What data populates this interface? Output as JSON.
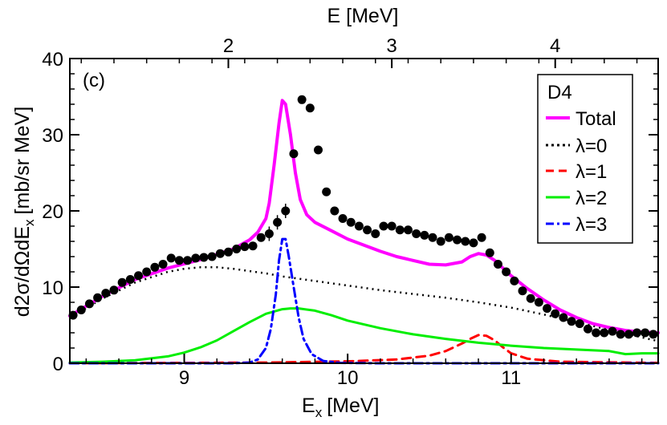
{
  "chart_data": {
    "type": "line",
    "panel_label": "(c)",
    "xlabel": "E",
    "xlabel_sub": "x",
    "xlabel_units": "[MeV]",
    "top_xlabel": "E [MeV]",
    "ylabel": "d2σ/dΩdE",
    "ylabel_sub": "x",
    "ylabel_units": "[mb/sr MeV]",
    "xlim": [
      8.3,
      11.9
    ],
    "ylim": [
      0,
      40
    ],
    "x_ticks": [
      9,
      10,
      11
    ],
    "x_tick_labels": [
      "9",
      "10",
      "11"
    ],
    "y_ticks": [
      0,
      10,
      20,
      30,
      40
    ],
    "y_tick_labels": [
      "0",
      "10",
      "20",
      "30",
      "40"
    ],
    "top_ticks_ex": [
      9.27,
      10.27,
      11.27
    ],
    "top_tick_labels": [
      "2",
      "3",
      "4"
    ],
    "legend": {
      "title": "D4",
      "entries": [
        {
          "label": "Total",
          "color": "#ff00ff",
          "style": "solid"
        },
        {
          "label": "λ=0",
          "color": "#000000",
          "style": "dotted"
        },
        {
          "label": "λ=1",
          "color": "#ff0000",
          "style": "dashed"
        },
        {
          "label": "λ=2",
          "color": "#00ee00",
          "style": "solid"
        },
        {
          "label": "λ=3",
          "color": "#0000ff",
          "style": "dashdot"
        }
      ]
    },
    "data_points": {
      "x": [
        8.32,
        8.37,
        8.42,
        8.47,
        8.52,
        8.57,
        8.62,
        8.67,
        8.72,
        8.77,
        8.82,
        8.87,
        8.92,
        8.97,
        9.02,
        9.07,
        9.12,
        9.17,
        9.22,
        9.27,
        9.32,
        9.37,
        9.42,
        9.47,
        9.52,
        9.57,
        9.62,
        9.67,
        9.72,
        9.77,
        9.82,
        9.87,
        9.92,
        9.97,
        10.02,
        10.07,
        10.12,
        10.17,
        10.22,
        10.27,
        10.32,
        10.37,
        10.42,
        10.47,
        10.52,
        10.57,
        10.62,
        10.67,
        10.72,
        10.77,
        10.82,
        10.87,
        10.92,
        10.97,
        11.02,
        11.07,
        11.12,
        11.17,
        11.22,
        11.27,
        11.32,
        11.37,
        11.42,
        11.47,
        11.52,
        11.57,
        11.62,
        11.67,
        11.72,
        11.77,
        11.82,
        11.87
      ],
      "y": [
        6.3,
        7.0,
        7.8,
        8.6,
        9.2,
        9.6,
        10.6,
        11.0,
        11.5,
        12.0,
        12.6,
        13.0,
        13.8,
        13.5,
        13.5,
        13.8,
        13.9,
        14.0,
        14.4,
        14.6,
        15.0,
        15.3,
        15.4,
        16.5,
        17.0,
        18.5,
        20.0,
        27.5,
        34.6,
        33.5,
        28.0,
        22.5,
        20.0,
        19.0,
        18.5,
        18.0,
        17.5,
        17.0,
        18.0,
        18.0,
        17.5,
        17.5,
        17.0,
        16.8,
        16.5,
        16.0,
        16.5,
        16.2,
        16.0,
        15.8,
        16.5,
        14.5,
        13.0,
        12.0,
        10.8,
        9.5,
        8.5,
        8.0,
        7.2,
        6.5,
        6.0,
        5.5,
        5.2,
        4.5,
        4.0,
        4.0,
        4.2,
        3.8,
        3.8,
        4.0,
        4.0,
        3.8
      ],
      "error_points_ex": [
        9.52,
        9.57,
        9.62
      ]
    },
    "series": [
      {
        "name": "Total",
        "color": "#ff00ff",
        "style": "solid",
        "x": [
          8.3,
          8.5,
          8.7,
          8.9,
          9.1,
          9.3,
          9.4,
          9.45,
          9.5,
          9.52,
          9.55,
          9.58,
          9.6,
          9.62,
          9.65,
          9.68,
          9.71,
          9.75,
          9.8,
          9.9,
          10.0,
          10.1,
          10.2,
          10.3,
          10.4,
          10.5,
          10.6,
          10.7,
          10.75,
          10.8,
          10.85,
          10.9,
          11.0,
          11.1,
          11.2,
          11.3,
          11.4,
          11.5,
          11.6,
          11.7,
          11.8,
          11.9
        ],
        "y": [
          6.2,
          8.8,
          11.0,
          12.5,
          13.6,
          15.0,
          16.2,
          17.2,
          19.0,
          21.0,
          26.0,
          31.5,
          34.5,
          34.0,
          30.0,
          25.0,
          21.5,
          19.5,
          18.5,
          17.4,
          16.3,
          15.5,
          14.7,
          14.0,
          13.5,
          13.0,
          12.9,
          13.3,
          14.0,
          14.4,
          14.2,
          13.5,
          11.5,
          9.8,
          8.3,
          7.0,
          6.0,
          5.2,
          4.7,
          4.3,
          4.1,
          4.0
        ]
      },
      {
        "name": "λ=0",
        "color": "#000000",
        "style": "dotted",
        "x": [
          8.3,
          8.5,
          8.7,
          8.9,
          9.0,
          9.1,
          9.2,
          9.3,
          9.4,
          9.5,
          9.6,
          9.8,
          10.0,
          10.2,
          10.4,
          10.6,
          10.8,
          11.0,
          11.2,
          11.4,
          11.6,
          11.8,
          11.9
        ],
        "y": [
          6.0,
          8.5,
          10.6,
          12.0,
          12.4,
          12.6,
          12.6,
          12.4,
          12.1,
          11.8,
          11.4,
          10.8,
          10.2,
          9.6,
          9.1,
          8.6,
          8.0,
          7.3,
          6.4,
          5.4,
          4.4,
          3.4,
          2.9
        ]
      },
      {
        "name": "λ=1",
        "color": "#ff0000",
        "style": "dashed",
        "x": [
          8.3,
          9.0,
          9.5,
          10.0,
          10.3,
          10.5,
          10.6,
          10.7,
          10.75,
          10.8,
          10.85,
          10.9,
          10.95,
          11.0,
          11.1,
          11.3,
          11.9
        ],
        "y": [
          0.0,
          0.05,
          0.1,
          0.25,
          0.5,
          1.0,
          1.6,
          2.6,
          3.2,
          3.7,
          3.6,
          3.0,
          2.1,
          1.3,
          0.6,
          0.2,
          0.05
        ]
      },
      {
        "name": "λ=2",
        "color": "#00ee00",
        "style": "solid",
        "x": [
          8.3,
          8.5,
          8.7,
          8.9,
          9.0,
          9.1,
          9.2,
          9.3,
          9.4,
          9.5,
          9.6,
          9.65,
          9.7,
          9.8,
          9.9,
          10.0,
          10.2,
          10.4,
          10.6,
          10.8,
          11.0,
          11.2,
          11.4,
          11.6,
          11.7,
          11.8,
          11.9
        ],
        "y": [
          0.1,
          0.2,
          0.4,
          0.9,
          1.4,
          2.1,
          3.0,
          4.2,
          5.4,
          6.5,
          7.1,
          7.2,
          7.2,
          6.9,
          6.3,
          5.6,
          4.6,
          3.8,
          3.2,
          2.7,
          2.3,
          2.0,
          1.8,
          1.6,
          1.2,
          1.3,
          1.3
        ]
      },
      {
        "name": "λ=3",
        "color": "#0000ff",
        "style": "dashdot",
        "x": [
          8.3,
          9.3,
          9.4,
          9.45,
          9.5,
          9.53,
          9.56,
          9.58,
          9.6,
          9.62,
          9.64,
          9.67,
          9.7,
          9.73,
          9.78,
          9.85,
          9.95,
          10.2,
          11.9
        ],
        "y": [
          0.0,
          0.0,
          0.1,
          0.5,
          2.0,
          4.5,
          9.0,
          13.5,
          16.3,
          16.3,
          14.0,
          10.0,
          6.0,
          3.2,
          1.2,
          0.3,
          0.05,
          0.0,
          0.0
        ]
      }
    ]
  }
}
